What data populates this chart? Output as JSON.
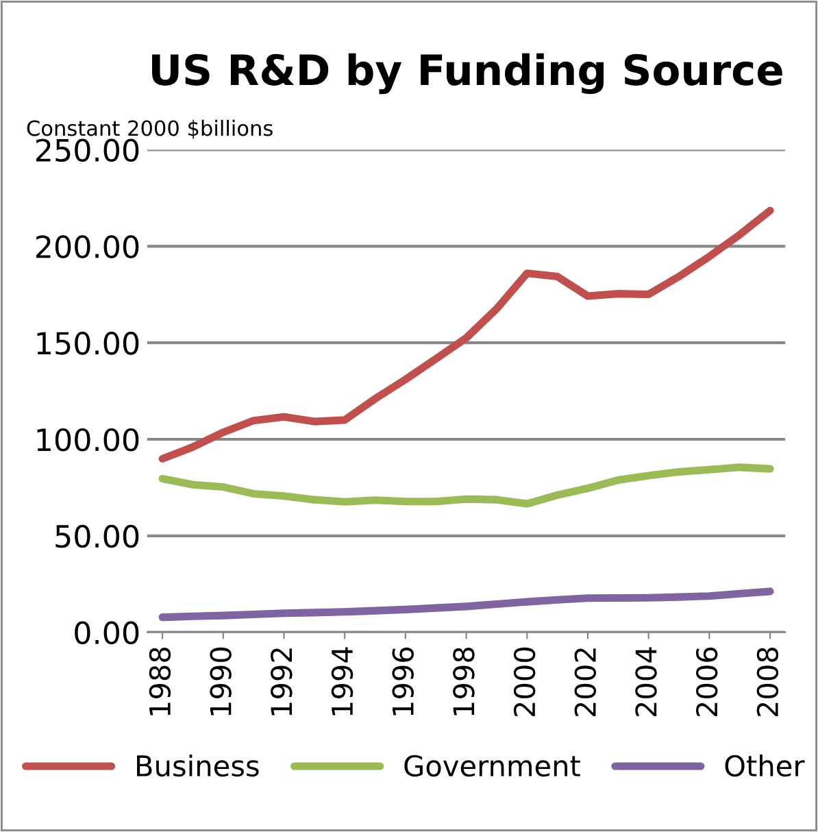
{
  "chart_data": {
    "type": "line",
    "title": "US R&D by Funding Source",
    "ylabel": "Constant 2000 $billions",
    "x": [
      1988,
      1989,
      1990,
      1991,
      1992,
      1993,
      1994,
      1995,
      1996,
      1997,
      1998,
      1999,
      2000,
      2001,
      2002,
      2003,
      2004,
      2005,
      2006,
      2007,
      2008
    ],
    "series": [
      {
        "name": "Business",
        "color": "#c0504d",
        "values": [
          89.9,
          96,
          103.6,
          109.7,
          111.6,
          109.2,
          110,
          121,
          131,
          141.7,
          152.5,
          167.6,
          186,
          184.3,
          174.2,
          175.4,
          175.1,
          184.3,
          194.7,
          206,
          218.5
        ]
      },
      {
        "name": "Government",
        "color": "#9bbb59",
        "values": [
          79.6,
          76.5,
          75.3,
          71.8,
          70.6,
          68.7,
          67.6,
          68.5,
          67.8,
          67.8,
          69,
          68.7,
          66.6,
          71.1,
          74.6,
          78.9,
          81.2,
          83.1,
          84.3,
          85.5,
          84.7
        ]
      },
      {
        "name": "Other",
        "color": "#8064a2",
        "values": [
          7.8,
          8.3,
          8.7,
          9.3,
          9.9,
          10.2,
          10.6,
          11.2,
          11.8,
          12.6,
          13.4,
          14.6,
          15.8,
          16.8,
          17.7,
          17.8,
          17.9,
          18.3,
          18.8,
          20.0,
          21.2
        ]
      }
    ],
    "xlim": [
      1987.5,
      2008.5
    ],
    "xticks": [
      1988,
      1990,
      1992,
      1994,
      1996,
      1998,
      2000,
      2002,
      2004,
      2006,
      2008
    ],
    "ylim": [
      0,
      250
    ],
    "yticks": [
      {
        "value": 0,
        "label": "0.00"
      },
      {
        "value": 50,
        "label": "50.00"
      },
      {
        "value": 100,
        "label": "100.00"
      },
      {
        "value": 150,
        "label": "150.00"
      },
      {
        "value": 200,
        "label": "200.00"
      },
      {
        "value": 250,
        "label": "250.00"
      }
    ],
    "grid": "y",
    "legend": "bottom",
    "marker": "none",
    "line_style": "solid"
  }
}
